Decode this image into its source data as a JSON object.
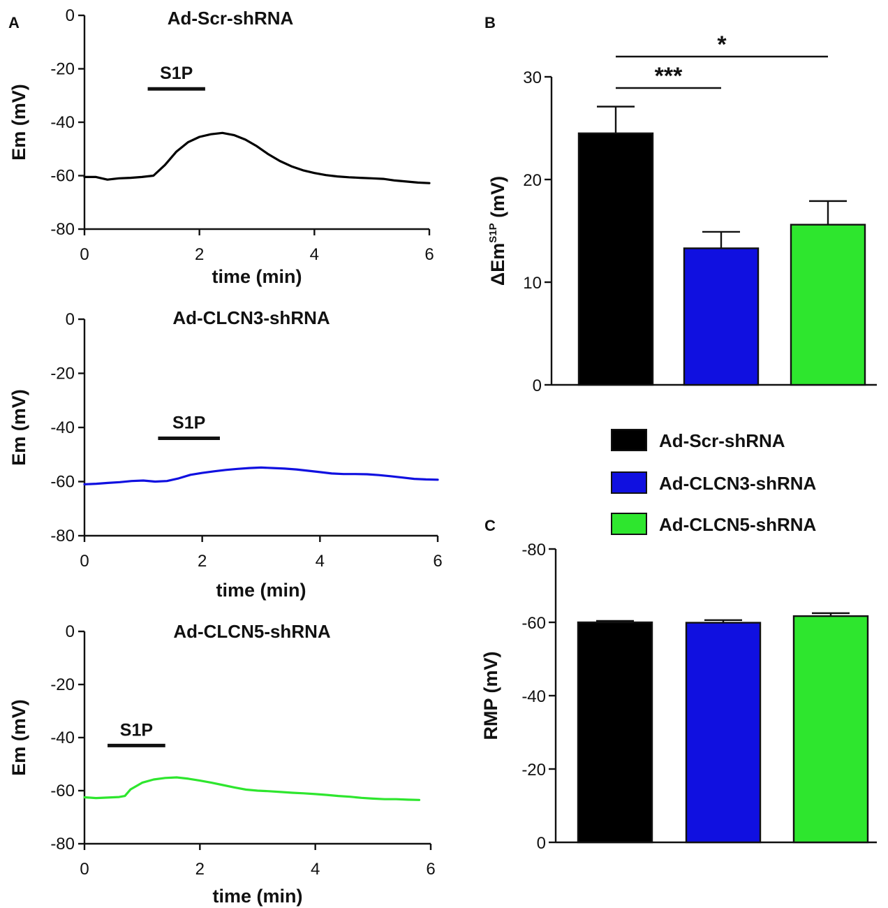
{
  "panels": {
    "a": {
      "letter": "A"
    },
    "b": {
      "letter": "B"
    },
    "c": {
      "letter": "C"
    }
  },
  "colors": {
    "scr": "#000000",
    "clcn3": "#1010e0",
    "clcn5": "#2ee62e"
  },
  "legend": [
    {
      "label": "Ad-Scr-shRNA",
      "color": "#000000"
    },
    {
      "label": "Ad-CLCN3-shRNA",
      "color": "#1010e0"
    },
    {
      "label": "Ad-CLCN5-shRNA",
      "color": "#2ee62e"
    }
  ],
  "chart_data": [
    {
      "id": "trace_scr",
      "type": "line",
      "title": "Ad-Scr-shRNA",
      "xlabel": "time (min)",
      "ylabel": "Em (mV)",
      "xlim": [
        0,
        6
      ],
      "ylim": [
        -80,
        0
      ],
      "x_ticks": [
        0,
        2,
        4,
        6
      ],
      "y_ticks": [
        0,
        -20,
        -40,
        -60,
        -80
      ],
      "color": "#000000",
      "stimulus": {
        "label": "S1P",
        "start": 1.1,
        "end": 2.1
      },
      "x": [
        0,
        0.2,
        0.4,
        0.6,
        0.8,
        1.0,
        1.2,
        1.4,
        1.6,
        1.8,
        2.0,
        2.2,
        2.4,
        2.6,
        2.8,
        3.0,
        3.2,
        3.4,
        3.6,
        3.8,
        4.0,
        4.2,
        4.4,
        4.6,
        4.8,
        5.0,
        5.2,
        5.4,
        5.6,
        5.8,
        6.0
      ],
      "y": [
        -60.5,
        -60.5,
        -61.5,
        -61,
        -60.8,
        -60.5,
        -60,
        -56,
        -51,
        -47.5,
        -45.5,
        -44.5,
        -44,
        -44.8,
        -46.5,
        -49,
        -52,
        -54.5,
        -56.5,
        -58,
        -59,
        -59.8,
        -60.3,
        -60.6,
        -60.8,
        -61,
        -61.2,
        -61.8,
        -62.2,
        -62.6,
        -62.8
      ]
    },
    {
      "id": "trace_clcn3",
      "type": "line",
      "title": "Ad-CLCN3-shRNA",
      "xlabel": "time (min)",
      "ylabel": "Em (mV)",
      "xlim": [
        0,
        6
      ],
      "ylim": [
        -80,
        0
      ],
      "x_ticks": [
        0,
        2,
        4,
        6
      ],
      "y_ticks": [
        0,
        -20,
        -40,
        -60,
        -80
      ],
      "color": "#1010e0",
      "stimulus": {
        "label": "S1P",
        "start": 1.25,
        "end": 2.3
      },
      "x": [
        0,
        0.2,
        0.4,
        0.6,
        0.8,
        1.0,
        1.2,
        1.4,
        1.6,
        1.8,
        2.0,
        2.2,
        2.4,
        2.6,
        2.8,
        3.0,
        3.2,
        3.4,
        3.6,
        3.8,
        4.0,
        4.2,
        4.4,
        4.6,
        4.8,
        5.0,
        5.2,
        5.4,
        5.6,
        5.8,
        6.0
      ],
      "y": [
        -61,
        -60.8,
        -60.5,
        -60.2,
        -59.8,
        -59.6,
        -60,
        -59.8,
        -58.8,
        -57.5,
        -56.8,
        -56.2,
        -55.7,
        -55.3,
        -55,
        -54.8,
        -55,
        -55.2,
        -55.5,
        -56,
        -56.5,
        -57,
        -57.2,
        -57.2,
        -57.3,
        -57.6,
        -58,
        -58.5,
        -59,
        -59.2,
        -59.3
      ]
    },
    {
      "id": "trace_clcn5",
      "type": "line",
      "title": "Ad-CLCN5-shRNA",
      "xlabel": "time (min)",
      "ylabel": "Em (mV)",
      "xlim": [
        0,
        6
      ],
      "ylim": [
        -80,
        0
      ],
      "x_ticks": [
        0,
        2,
        4,
        6
      ],
      "y_ticks": [
        0,
        -20,
        -40,
        -60,
        -80
      ],
      "color": "#2ee62e",
      "stimulus": {
        "label": "S1P",
        "start": 0.4,
        "end": 1.4
      },
      "x": [
        0,
        0.2,
        0.4,
        0.6,
        0.7,
        0.8,
        1.0,
        1.2,
        1.4,
        1.6,
        1.8,
        2.0,
        2.2,
        2.4,
        2.6,
        2.8,
        3.0,
        3.2,
        3.4,
        3.6,
        3.8,
        4.0,
        4.2,
        4.4,
        4.6,
        4.8,
        5.0,
        5.2,
        5.4,
        5.6,
        5.8
      ],
      "y": [
        -62.5,
        -62.8,
        -62.6,
        -62.4,
        -62,
        -59.5,
        -57,
        -55.8,
        -55.2,
        -55,
        -55.5,
        -56.2,
        -57,
        -57.9,
        -58.8,
        -59.6,
        -60,
        -60.2,
        -60.5,
        -60.8,
        -61,
        -61.3,
        -61.6,
        -62,
        -62.3,
        -62.7,
        -63,
        -63.2,
        -63.2,
        -63.4,
        -63.5
      ]
    },
    {
      "id": "bar_delta_em",
      "type": "bar",
      "ylabel": "ΔEm",
      "ylabel_sup": "S1P",
      "ylabel_unit": " (mV)",
      "categories": [
        "Ad-Scr-shRNA",
        "Ad-CLCN3-shRNA",
        "Ad-CLCN5-shRNA"
      ],
      "values": [
        24.5,
        13.3,
        15.6
      ],
      "errors": [
        2.6,
        1.6,
        2.3
      ],
      "colors": [
        "#000000",
        "#1010e0",
        "#2ee62e"
      ],
      "ylim": [
        0,
        30
      ],
      "y_ticks": [
        0,
        10,
        20,
        30
      ],
      "significance": [
        {
          "from": 0,
          "to": 1,
          "label": "***"
        },
        {
          "from": 0,
          "to": 2,
          "label": "*"
        }
      ]
    },
    {
      "id": "bar_rmp",
      "type": "bar",
      "ylabel": "RMP (mV)",
      "categories": [
        "Ad-Scr-shRNA",
        "Ad-CLCN3-shRNA",
        "Ad-CLCN5-shRNA"
      ],
      "values": [
        -60,
        -59.9,
        -61.7
      ],
      "errors": [
        0.4,
        0.7,
        0.8
      ],
      "colors": [
        "#000000",
        "#1010e0",
        "#2ee62e"
      ],
      "ylim": [
        0,
        -80
      ],
      "y_ticks": [
        0,
        -20,
        -40,
        -60,
        -80
      ],
      "axis_inverted": true
    }
  ]
}
